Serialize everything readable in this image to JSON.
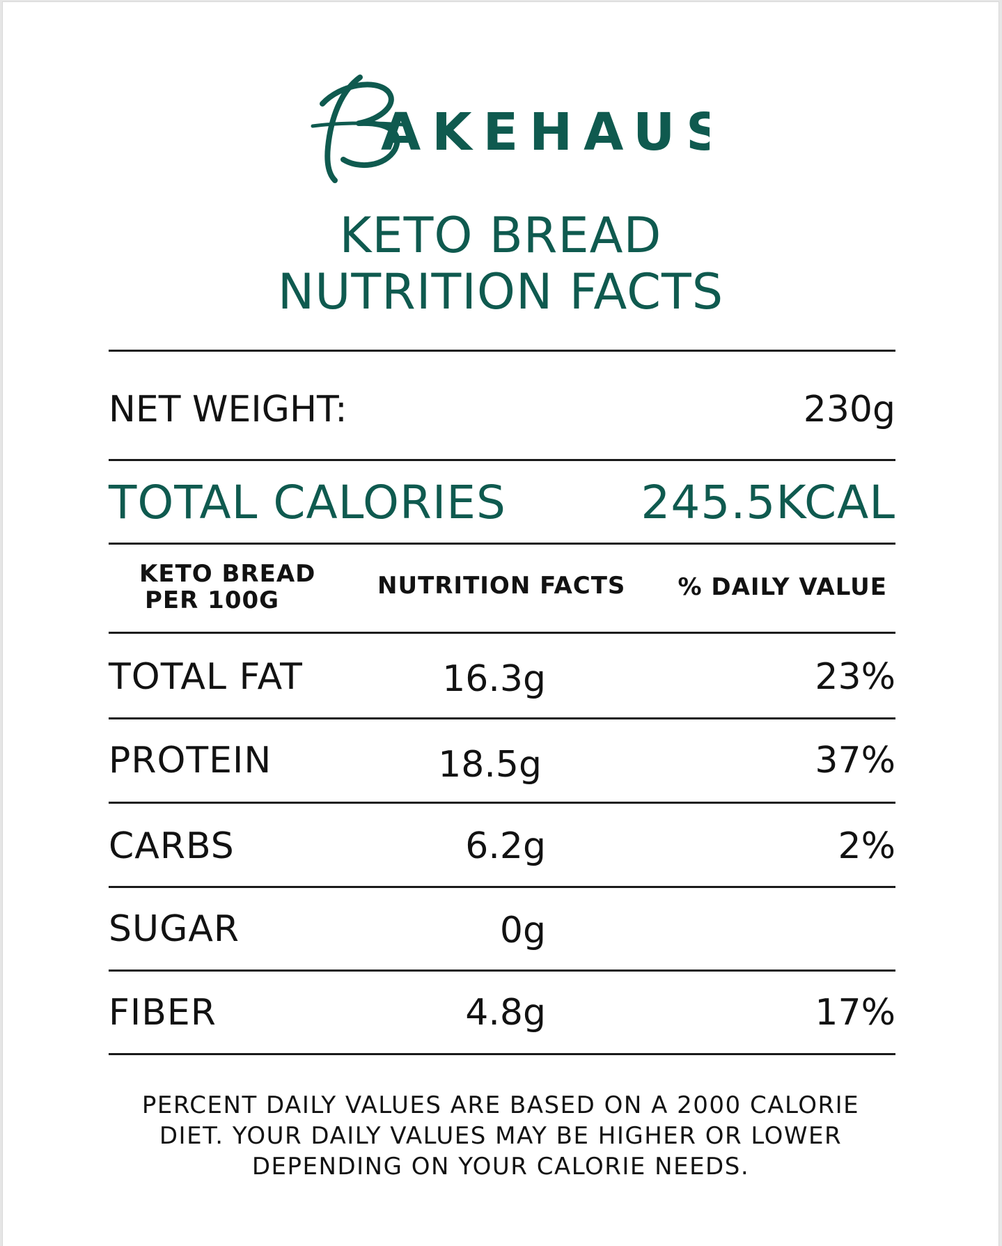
{
  "brand": {
    "name": "BAKEHAUS",
    "color": "#0f5a4f"
  },
  "title": {
    "line1": "KETO BREAD",
    "line2": "NUTRITION FACTS"
  },
  "net_weight": {
    "label": "NET WEIGHT:",
    "value": "230g"
  },
  "total_calories": {
    "label": "TOTAL CALORIES",
    "value": "245.5KCAL"
  },
  "table_header": {
    "col1_line1": "KETO BREAD",
    "col1_line2": "PER 100G",
    "col2": "NUTRITION FACTS",
    "col3": "% DAILY VALUE"
  },
  "nutrients": [
    {
      "name": "TOTAL FAT",
      "amount": "16.3g",
      "daily_value": "23%"
    },
    {
      "name": "PROTEIN",
      "amount": "18.5g",
      "daily_value": "37%"
    },
    {
      "name": "CARBS",
      "amount": "6.2g",
      "daily_value": "2%"
    },
    {
      "name": "SUGAR",
      "amount": "0g",
      "daily_value": ""
    },
    {
      "name": "FIBER",
      "amount": "4.8g",
      "daily_value": "17%"
    }
  ],
  "footnote": {
    "line1": "PERCENT DAILY VALUES ARE BASED ON A 2000 CALORIE",
    "line2": "DIET. YOUR DAILY VALUES MAY BE HIGHER OR LOWER",
    "line3": "DEPENDING ON YOUR CALORIE NEEDS."
  }
}
